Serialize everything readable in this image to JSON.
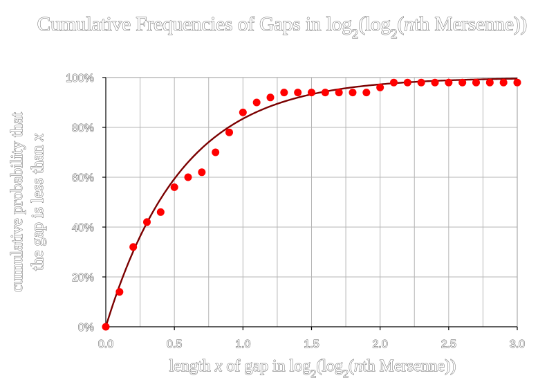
{
  "chart_data": {
    "type": "scatter",
    "title_parts": {
      "pre": "Cumulative Frequencies of Gaps in log",
      "sub1": "2",
      "mid": "(log",
      "sub2": "2",
      "mid2": "(",
      "italic": "n",
      "post": "th Mersenne))"
    },
    "xlabel_parts": {
      "pre": "length ",
      "italic_x": "x",
      "mid": " of gap in log",
      "sub1": "2",
      "mid2": "(log",
      "sub2": "2",
      "mid3": "(",
      "italic_n": "n",
      "post": "th Mersenne))"
    },
    "ylabel_lines": {
      "line1": "cumulative probability that",
      "line2_pre": "the gap is less than ",
      "line2_italic": "x"
    },
    "xlim": [
      0,
      3
    ],
    "ylim": [
      0,
      100
    ],
    "x_ticks": [
      "0.0",
      "0.5",
      "1.0",
      "1.5",
      "2.0",
      "2.5",
      "3.0"
    ],
    "x_tick_values": [
      0,
      0.5,
      1,
      1.5,
      2,
      2.5,
      3
    ],
    "x_grid_step": 0.25,
    "y_ticks": [
      "0%",
      "20%",
      "40%",
      "60%",
      "80%",
      "100%"
    ],
    "y_tick_values": [
      0,
      20,
      40,
      60,
      80,
      100
    ],
    "grid": true,
    "series": [
      {
        "type": "scatter",
        "color": "#ff0000",
        "x": [
          0,
          0.1,
          0.2,
          0.3,
          0.4,
          0.5,
          0.6,
          0.7,
          0.8,
          0.9,
          1.0,
          1.1,
          1.2,
          1.3,
          1.4,
          1.5,
          1.6,
          1.7,
          1.8,
          1.9,
          2.0,
          2.1,
          2.2,
          2.3,
          2.4,
          2.5,
          2.6,
          2.7,
          2.8,
          2.9,
          3.0
        ],
        "y": [
          0,
          14,
          32,
          42,
          46,
          56,
          60,
          62,
          70,
          78,
          86,
          90,
          92,
          94,
          94,
          94,
          94,
          94,
          94,
          94,
          96,
          98,
          98,
          98,
          98,
          98,
          98,
          98,
          98,
          98,
          98
        ]
      },
      {
        "type": "line",
        "color": "#7b0000",
        "formula": "100*(1 - exp(-1.8*x))",
        "rate": 1.8
      }
    ]
  }
}
